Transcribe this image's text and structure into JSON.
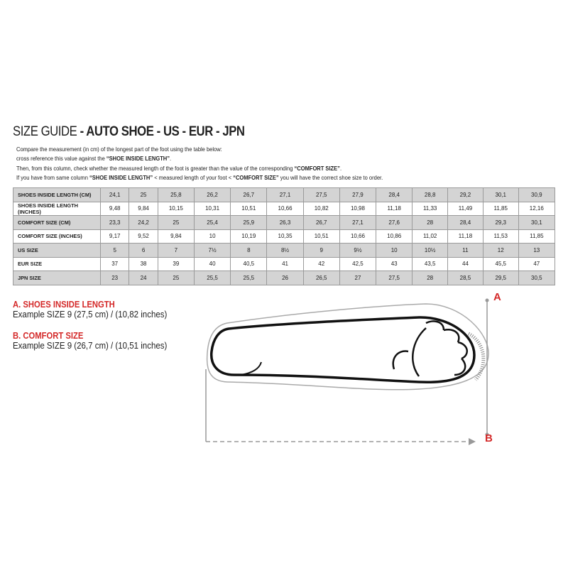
{
  "title": {
    "light": "SIZE GUIDE",
    "bold": " - AUTO SHOE - US - EUR - JPN"
  },
  "intro": [
    {
      "text": "Compare the measurement (in cm) of the longest part of the foot using the table below:",
      "bold": "",
      "after": ""
    },
    {
      "text": "cross reference this value against the ",
      "bold": "“SHOE INSIDE LENGTH”",
      "after": "."
    },
    {
      "text": "Then, from this column, check whether the measured length of the foot is greater than the value of the corresponding ",
      "bold": "“COMFORT SIZE”",
      "after": "."
    },
    {
      "text": "If you have from same column ",
      "bold": "“SHOE INSIDE LENGTH”",
      "after": " <  measured length of your foot  < ",
      "bold2": "“COMFORT SIZE”",
      "after2": " you will have the correct shoe size to order."
    }
  ],
  "table": {
    "rows": [
      {
        "label": "SHOES INSIDE LENGTH (CM)",
        "values": [
          "24,1",
          "25",
          "25,8",
          "26,2",
          "26,7",
          "27,1",
          "27,5",
          "27,9",
          "28,4",
          "28,8",
          "29,2",
          "30,1",
          "30,9"
        ]
      },
      {
        "label": "SHOES INSIDE LENGTH (INCHES)",
        "values": [
          "9,48",
          "9,84",
          "10,15",
          "10,31",
          "10,51",
          "10,66",
          "10,82",
          "10,98",
          "11,18",
          "11,33",
          "11,49",
          "11,85",
          "12,16"
        ]
      },
      {
        "label": "COMFORT SIZE (CM)",
        "values": [
          "23,3",
          "24,2",
          "25",
          "25,4",
          "25,9",
          "26,3",
          "26,7",
          "27,1",
          "27,6",
          "28",
          "28,4",
          "29,3",
          "30,1"
        ]
      },
      {
        "label": "COMFORT SIZE (INCHES)",
        "values": [
          "9,17",
          "9,52",
          "9,84",
          "10",
          "10,19",
          "10,35",
          "10,51",
          "10,66",
          "10,86",
          "11,02",
          "11,18",
          "11,53",
          "11,85"
        ]
      },
      {
        "label": "US SIZE",
        "values": [
          "5",
          "6",
          "7",
          "7½",
          "8",
          "8½",
          "9",
          "9½",
          "10",
          "10½",
          "11",
          "12",
          "13"
        ]
      },
      {
        "label": "EUR SIZE",
        "values": [
          "37",
          "38",
          "39",
          "40",
          "40,5",
          "41",
          "42",
          "42,5",
          "43",
          "43,5",
          "44",
          "45,5",
          "47"
        ]
      },
      {
        "label": "JPN SIZE",
        "values": [
          "23",
          "24",
          "25",
          "25,5",
          "25,5",
          "26",
          "26,5",
          "27",
          "27,5",
          "28",
          "28,5",
          "29,5",
          "30,5"
        ]
      }
    ]
  },
  "examples": [
    {
      "label": "A. SHOES INSIDE LENGTH",
      "value": "Example SIZE 9 (27,5 cm) / (10,82 inches)"
    },
    {
      "label": "B. COMFORT SIZE",
      "value": "Example SIZE 9 (26,7 cm) / (10,51 inches)"
    }
  ],
  "markers": {
    "a": "A",
    "b": "B"
  },
  "colors": {
    "accent": "#d42a2a",
    "row_shade": "#d4d4d4"
  }
}
